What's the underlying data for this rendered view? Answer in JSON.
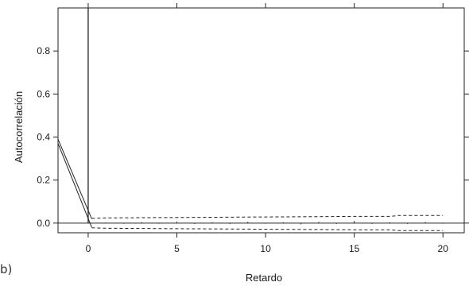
{
  "chart_data": {
    "type": "line",
    "title": "",
    "xlabel": "Retardo",
    "ylabel": "Autocorrelación",
    "xlim": [
      -1.7,
      21.2
    ],
    "ylim": [
      -0.045,
      1.0
    ],
    "x_ticks": [
      0,
      5,
      10,
      15,
      20
    ],
    "x_tick_labels": [
      "0",
      "5",
      "10",
      "15",
      "20"
    ],
    "y_ticks": [
      0.0,
      0.2,
      0.4,
      0.6,
      0.8
    ],
    "y_tick_labels": [
      "0.0",
      "0.2",
      "0.4",
      "0.6",
      "0.8"
    ],
    "grid": false,
    "acf_bars": {
      "lags": [
        0,
        1,
        2,
        3,
        4,
        5,
        6,
        7,
        8,
        9,
        10,
        11,
        12,
        13,
        14,
        15,
        16,
        17,
        18,
        19,
        20
      ],
      "values": [
        1.0,
        0.002,
        -0.003,
        0.004,
        -0.003,
        0.006,
        -0.004,
        0.004,
        -0.004,
        0.006,
        -0.003,
        0.004,
        -0.006,
        0.005,
        -0.004,
        0.01,
        -0.004,
        0.004,
        -0.004,
        0.005,
        -0.003
      ]
    },
    "upper_bound": {
      "x": [
        0.2,
        1,
        3,
        5,
        7,
        9,
        11,
        13,
        15,
        17,
        17.5,
        20
      ],
      "y": [
        0.022,
        0.024,
        0.025,
        0.026,
        0.027,
        0.028,
        0.029,
        0.03,
        0.031,
        0.031,
        0.035,
        0.035
      ]
    },
    "lower_bound": {
      "x": [
        0.2,
        1,
        3,
        5,
        7,
        9,
        11,
        13,
        15,
        17,
        17.5,
        20
      ],
      "y": [
        -0.022,
        -0.024,
        -0.025,
        -0.026,
        -0.027,
        -0.028,
        -0.029,
        -0.03,
        -0.031,
        -0.031,
        -0.035,
        -0.035
      ]
    },
    "lead_lines": [
      {
        "x": [
          -1.7,
          0.2
        ],
        "y": [
          0.39,
          0.02
        ]
      },
      {
        "x": [
          -1.7,
          0.2
        ],
        "y": [
          0.37,
          -0.02
        ]
      }
    ],
    "reference_line": 0.0
  },
  "panel_tag": "b)"
}
